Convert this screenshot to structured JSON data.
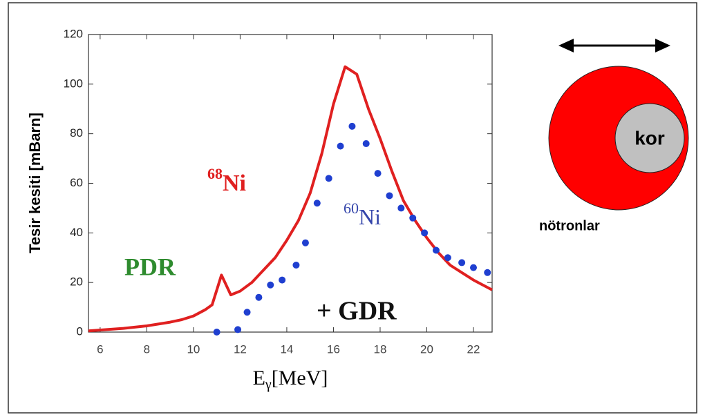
{
  "chart_data": {
    "type": "line_scatter",
    "ylabel": "Tesir kesiti [mBarn]",
    "xlabel": {
      "main": "E",
      "sub": "γ",
      "unit": "[MeV]"
    },
    "xlim": [
      5.5,
      22.8
    ],
    "ylim": [
      0,
      120
    ],
    "xticks": [
      6,
      8,
      10,
      12,
      14,
      16,
      18,
      20,
      22
    ],
    "yticks": [
      0,
      20,
      40,
      60,
      80,
      100,
      120
    ],
    "line": {
      "color": "#e02020",
      "x": [
        5.5,
        7,
        8,
        9,
        9.5,
        10,
        10.5,
        10.8,
        11,
        11.2,
        11.4,
        11.6,
        12,
        12.5,
        13,
        13.5,
        14,
        14.5,
        15,
        15.5,
        16,
        16.5,
        17,
        17.5,
        18,
        18.5,
        19,
        19.5,
        20,
        20.5,
        21,
        21.5,
        22,
        22.8
      ],
      "values": [
        0.5,
        1.5,
        2.5,
        4,
        5,
        6.5,
        9,
        11,
        17,
        23,
        19,
        15,
        16.5,
        20,
        25,
        30,
        37,
        45,
        56,
        72,
        92,
        107,
        104,
        90,
        78,
        65,
        53,
        45,
        38,
        32,
        27,
        24,
        21,
        17
      ]
    },
    "points": {
      "color": "#1f3fd0",
      "x": [
        11.0,
        11.9,
        12.3,
        12.8,
        13.3,
        13.8,
        14.4,
        14.8,
        15.3,
        15.8,
        16.3,
        16.8,
        17.4,
        17.9,
        18.4,
        18.9,
        19.4,
        19.9,
        20.4,
        20.9,
        21.5,
        22.0,
        22.6
      ],
      "values": [
        0,
        1,
        8,
        14,
        19,
        21,
        27,
        36,
        52,
        62,
        75,
        83,
        76,
        64,
        55,
        50,
        46,
        40,
        33,
        30,
        28,
        26,
        24
      ]
    },
    "annotations": [
      {
        "sup": "68",
        "text": "Ni",
        "color": "#e02020"
      },
      {
        "sup": "60",
        "text": "Ni",
        "color": "#3344aa"
      },
      {
        "text": "PDR",
        "color": "#2e8b2e"
      },
      {
        "text": "+ GDR",
        "color": "#111111"
      }
    ]
  },
  "diagram": {
    "core": "kor",
    "shell": "nötronlar"
  }
}
